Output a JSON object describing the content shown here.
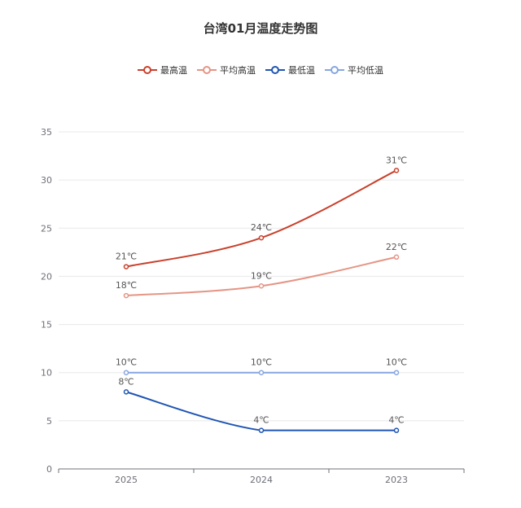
{
  "chart_data": {
    "type": "line",
    "title": "台湾01月温度走势图",
    "categories": [
      "2025",
      "2024",
      "2023"
    ],
    "ylim": [
      0,
      35
    ],
    "yticks": [
      0,
      5,
      10,
      15,
      20,
      25,
      30,
      35
    ],
    "grid": true,
    "legend_position": "top-center",
    "label_suffix": "℃",
    "smooth": true,
    "series": [
      {
        "name": "最高温",
        "color": "#c9402b",
        "values": [
          21,
          24,
          31
        ]
      },
      {
        "name": "平均高温",
        "color": "#e59585",
        "values": [
          18,
          19,
          22
        ]
      },
      {
        "name": "最低温",
        "color": "#1f55b3",
        "values": [
          8,
          4,
          4
        ]
      },
      {
        "name": "平均低温",
        "color": "#86a6e0",
        "values": [
          10,
          10,
          10
        ]
      }
    ]
  }
}
